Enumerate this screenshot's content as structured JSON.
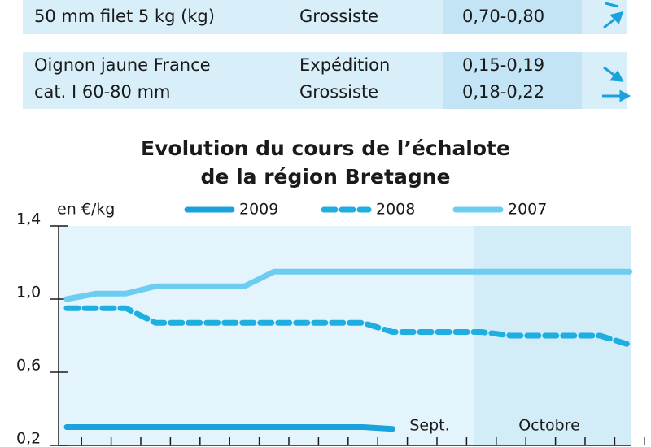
{
  "table": {
    "rows": [
      [
        [
          "50 mm filet 5 kg (kg)"
        ],
        [
          "Grossiste"
        ],
        [
          "0,70-0,80"
        ]
      ],
      [
        [
          "Oignon jaune France",
          "cat. I 60-80 mm"
        ],
        [
          "Expédition",
          "Grossiste"
        ],
        [
          "0,15-0,19",
          "0,18-0,22"
        ]
      ]
    ]
  },
  "chart_data": {
    "type": "line",
    "title": [
      "Evolution du cours de l’échalote",
      "de la région Bretagne"
    ],
    "y_label": "en €/kg",
    "annotations": [
      "Sept.",
      "Octobre"
    ],
    "categories": [
      null,
      null,
      null,
      null,
      null,
      null,
      null,
      null,
      null,
      null,
      null,
      null,
      null,
      null,
      null,
      null,
      null,
      null,
      null,
      null
    ],
    "series": [
      {
        "name": "2009",
        "color": "#1ba2dc",
        "style": "solid",
        "values": [
          0.3,
          0.3,
          0.3,
          0.3,
          0.3,
          0.3,
          0.3,
          0.3,
          0.3,
          0.3,
          0.3,
          0.29,
          null,
          null,
          null,
          null,
          null,
          null,
          null,
          null
        ]
      },
      {
        "name": "2008",
        "color": "#1faee0",
        "style": "dashed",
        "values": [
          0.95,
          0.95,
          0.95,
          0.87,
          0.87,
          0.87,
          0.87,
          0.87,
          0.87,
          0.87,
          0.87,
          0.82,
          0.82,
          0.82,
          0.82,
          0.8,
          0.8,
          0.8,
          0.8,
          0.75
        ]
      },
      {
        "name": "2007",
        "color": "#6ccdf0",
        "style": "solid",
        "values": [
          1.0,
          1.03,
          1.03,
          1.07,
          1.07,
          1.07,
          1.07,
          1.15,
          1.15,
          1.15,
          1.15,
          1.15,
          1.15,
          1.15,
          1.15,
          1.15,
          1.15,
          1.15,
          1.15,
          1.15
        ]
      }
    ],
    "ylim": [
      0.2,
      1.4
    ],
    "yticks": [
      {
        "value": 0.2,
        "label": "0,2"
      },
      {
        "value": 0.6,
        "label": "0,6"
      },
      {
        "value": 1.0,
        "label": "1,0"
      },
      {
        "value": 1.4,
        "label": "1,4"
      }
    ]
  }
}
